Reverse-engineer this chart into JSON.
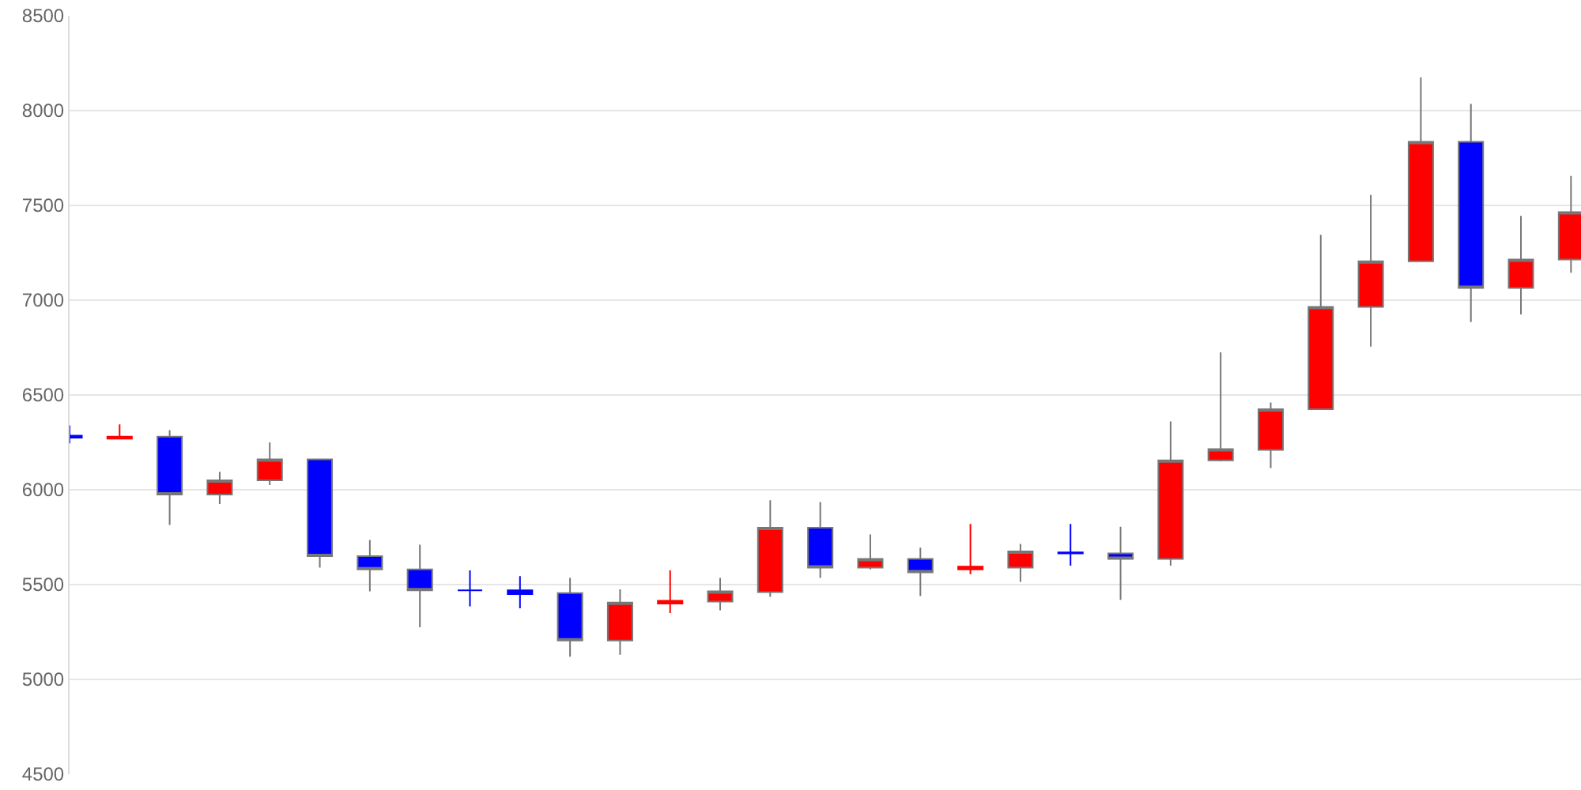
{
  "chart_data": {
    "type": "candlestick",
    "categories": [
      null,
      null,
      null,
      null,
      null,
      null,
      null,
      null,
      null,
      null,
      null,
      null,
      null,
      null,
      null,
      null,
      null,
      null,
      null,
      null,
      null,
      null,
      null,
      null,
      null,
      null,
      null,
      null,
      null,
      null,
      null
    ],
    "ohlc": [
      [
        6285,
        6340,
        6245,
        6275
      ],
      [
        6270,
        6345,
        6270,
        6280
      ],
      [
        6280,
        6315,
        5815,
        5975
      ],
      [
        5975,
        6095,
        5925,
        6050
      ],
      [
        6050,
        6250,
        6025,
        6160
      ],
      [
        6160,
        6160,
        5590,
        5650
      ],
      [
        5650,
        5735,
        5465,
        5580
      ],
      [
        5580,
        5710,
        5275,
        5470
      ],
      [
        5470,
        5575,
        5385,
        5470
      ],
      [
        5470,
        5545,
        5375,
        5450
      ],
      [
        5455,
        5535,
        5120,
        5205
      ],
      [
        5205,
        5475,
        5130,
        5405
      ],
      [
        5400,
        5575,
        5350,
        5415
      ],
      [
        5410,
        5535,
        5365,
        5465
      ],
      [
        5460,
        5945,
        5435,
        5800
      ],
      [
        5800,
        5935,
        5535,
        5590
      ],
      [
        5590,
        5765,
        5580,
        5635
      ],
      [
        5635,
        5695,
        5440,
        5565
      ],
      [
        5580,
        5820,
        5555,
        5595
      ],
      [
        5590,
        5715,
        5515,
        5675
      ],
      [
        5670,
        5820,
        5600,
        5665
      ],
      [
        5665,
        5805,
        5420,
        5635
      ],
      [
        5635,
        6360,
        5600,
        6155
      ],
      [
        6155,
        6725,
        6150,
        6215
      ],
      [
        6210,
        6460,
        6115,
        6425
      ],
      [
        6425,
        7345,
        6425,
        6965
      ],
      [
        6965,
        7555,
        6755,
        7205
      ],
      [
        7205,
        8175,
        7205,
        7835
      ],
      [
        7835,
        8035,
        6885,
        7065
      ],
      [
        7065,
        7445,
        6925,
        7215
      ],
      [
        7215,
        7655,
        7145,
        7465
      ]
    ],
    "colors": [
      "#0000ff",
      "#ff0000",
      "#0000ff",
      "#ff0000",
      "#ff0000",
      "#0000ff",
      "#0000ff",
      "#0000ff",
      "#0000ff",
      "#0000ff",
      "#0000ff",
      "#ff0000",
      "#ff0000",
      "#ff0000",
      "#ff0000",
      "#0000ff",
      "#ff0000",
      "#0000ff",
      "#ff0000",
      "#ff0000",
      "#0000ff",
      "#0000ff",
      "#ff0000",
      "#ff0000",
      "#ff0000",
      "#ff0000",
      "#ff0000",
      "#ff0000",
      "#0000ff",
      "#ff0000",
      "#ff0000"
    ],
    "ylim": [
      4500,
      8500
    ],
    "yticks": [
      4500,
      5000,
      5500,
      6000,
      6500,
      7000,
      7500,
      8000,
      8500
    ],
    "grid": "y",
    "tick_labels": "y"
  }
}
